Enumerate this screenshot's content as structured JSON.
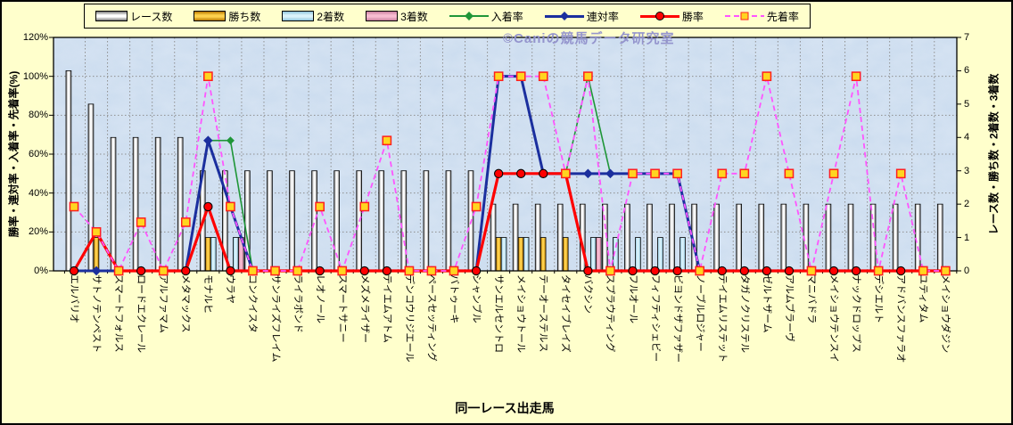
{
  "watermark": "©Caniの競馬データ研究室",
  "axes": {
    "left_title": "勝率・連対率・入着率・先着率(%)",
    "right_title": "レース数・勝ち数・2着数・3着数",
    "x_title": "同一レース出走馬",
    "left_ticks": [
      "0%",
      "20%",
      "40%",
      "60%",
      "80%",
      "100%",
      "120%"
    ],
    "right_ticks": [
      "0",
      "1",
      "2",
      "3",
      "4",
      "5",
      "6",
      "7"
    ]
  },
  "legend": {
    "items": [
      {
        "label": "レース数",
        "type": "bar",
        "key": "races"
      },
      {
        "label": "勝ち数",
        "type": "bar",
        "key": "wins"
      },
      {
        "label": "2着数",
        "type": "bar",
        "key": "seconds"
      },
      {
        "label": "3着数",
        "type": "bar",
        "key": "thirds"
      },
      {
        "label": "入着率",
        "type": "line",
        "key": "nyuchaku"
      },
      {
        "label": "連対率",
        "type": "line",
        "key": "rentai"
      },
      {
        "label": "勝率",
        "type": "line",
        "key": "shoritsu"
      },
      {
        "label": "先着率",
        "type": "line",
        "key": "senchaku"
      }
    ]
  },
  "chart_data": {
    "type": "combo-bar-line",
    "title": "同一レース出走馬",
    "categories": [
      "エルバリオ",
      "サトノテンペスト",
      "スマートフォルス",
      "ロードエクレール",
      "アルファマム",
      "メタマックス",
      "モナルヒ",
      "ウラヤ",
      "コンクイスタ",
      "サンライズフレイム",
      "ライラボンド",
      "レオノール",
      "スマートサニー",
      "メズメライザー",
      "テイエムアトム",
      "デンコウリジエール",
      "ペースセッティング",
      "バトゥーキ",
      "シャンブル",
      "サンエルセントロ",
      "メイショウトール",
      "テーオーステルス",
      "タイセイブレイズ",
      "バクシン",
      "スプラウティング",
      "フルオール",
      "フィフティシェビー",
      "ビヨンドザファザー",
      "ノーブルロジャー",
      "テイエムリステット",
      "タガノクリステル",
      "ゼルトザーム",
      "アルムブラーヴ",
      "マニバドラ",
      "メイショウテンスイ",
      "ナックドロップス",
      "デシエルト",
      "アドバンスファラオ",
      "ユティタム",
      "メイショウダジン"
    ],
    "bar_series": [
      {
        "key": "races",
        "name": "レース数",
        "axis": "right",
        "color_center": "#ffffff",
        "color_edge": "#7a7a7a",
        "values": [
          6,
          5,
          4,
          4,
          4,
          4,
          3,
          3,
          3,
          3,
          3,
          3,
          3,
          3,
          3,
          3,
          3,
          3,
          3,
          2,
          2,
          2,
          2,
          2,
          2,
          2,
          2,
          2,
          2,
          2,
          2,
          2,
          2,
          2,
          2,
          2,
          2,
          2,
          2,
          2
        ]
      },
      {
        "key": "wins",
        "name": "勝ち数",
        "axis": "right",
        "color_center": "#ffd24d",
        "color_edge": "#b87800",
        "values": [
          0,
          1,
          0,
          0,
          0,
          0,
          1,
          0,
          0,
          0,
          0,
          0,
          0,
          0,
          0,
          0,
          0,
          0,
          0,
          1,
          1,
          1,
          1,
          0,
          0,
          0,
          0,
          0,
          0,
          0,
          0,
          0,
          0,
          0,
          0,
          0,
          0,
          0,
          0,
          0
        ]
      },
      {
        "key": "seconds",
        "name": "2着数",
        "axis": "right",
        "color_center": "#d9f2fb",
        "color_edge": "#8fc4dc",
        "values": [
          0,
          0,
          0,
          0,
          0,
          0,
          1,
          1,
          0,
          0,
          0,
          0,
          0,
          0,
          0,
          0,
          0,
          0,
          0,
          1,
          1,
          0,
          0,
          1,
          1,
          1,
          1,
          1,
          0,
          0,
          0,
          0,
          0,
          0,
          0,
          0,
          0,
          0,
          0,
          0
        ]
      },
      {
        "key": "thirds",
        "name": "3着数",
        "axis": "right",
        "color_center": "#f8bcd1",
        "color_edge": "#c97f9e",
        "values": [
          0,
          0,
          0,
          0,
          0,
          0,
          0,
          1,
          0,
          0,
          0,
          0,
          0,
          0,
          0,
          0,
          0,
          0,
          0,
          0,
          0,
          0,
          0,
          1,
          0,
          0,
          0,
          0,
          0,
          0,
          0,
          0,
          0,
          0,
          0,
          0,
          0,
          0,
          0,
          0
        ]
      }
    ],
    "line_series": [
      {
        "key": "nyuchaku",
        "name": "入着率",
        "axis": "left",
        "color": "#1f9638",
        "marker": "diamond",
        "width": 1.6,
        "dashed": false,
        "values": [
          0,
          20,
          0,
          0,
          0,
          0,
          67,
          67,
          0,
          0,
          0,
          0,
          0,
          0,
          0,
          0,
          0,
          0,
          0,
          100,
          100,
          50,
          50,
          100,
          50,
          50,
          50,
          50,
          0,
          0,
          0,
          0,
          0,
          0,
          0,
          0,
          0,
          0,
          0,
          0
        ]
      },
      {
        "key": "rentai",
        "name": "連対率",
        "axis": "left",
        "color": "#1b2f9e",
        "marker": "diamond",
        "width": 3,
        "dashed": false,
        "values": [
          0,
          0,
          0,
          0,
          0,
          0,
          67,
          33,
          0,
          0,
          0,
          0,
          0,
          0,
          0,
          0,
          0,
          0,
          0,
          100,
          100,
          50,
          50,
          50,
          50,
          50,
          50,
          50,
          0,
          0,
          0,
          0,
          0,
          0,
          0,
          0,
          0,
          0,
          0,
          0
        ]
      },
      {
        "key": "shoritsu",
        "name": "勝率",
        "axis": "left",
        "color": "#ff0000",
        "marker": "circle",
        "width": 3.2,
        "dashed": false,
        "values": [
          0,
          20,
          0,
          0,
          0,
          0,
          33,
          0,
          0,
          0,
          0,
          0,
          0,
          0,
          0,
          0,
          0,
          0,
          0,
          50,
          50,
          50,
          50,
          0,
          0,
          0,
          0,
          0,
          0,
          0,
          0,
          0,
          0,
          0,
          0,
          0,
          0,
          0,
          0,
          0
        ]
      },
      {
        "key": "senchaku",
        "name": "先着率",
        "axis": "left",
        "color": "#ff55ff",
        "marker": "square",
        "width": 1.8,
        "dashed": true,
        "values": [
          33,
          20,
          0,
          25,
          0,
          25,
          100,
          33,
          0,
          0,
          0,
          33,
          0,
          33,
          67,
          0,
          0,
          0,
          33,
          100,
          100,
          100,
          50,
          100,
          0,
          50,
          50,
          50,
          0,
          50,
          50,
          100,
          50,
          0,
          50,
          100,
          0,
          50,
          0,
          0
        ]
      }
    ],
    "left_axis": {
      "min": 0,
      "max": 120,
      "step": 20,
      "unit": "%"
    },
    "right_axis": {
      "min": 0,
      "max": 7,
      "step": 1
    },
    "grid": true,
    "legend_position": "top",
    "plot_bg": "#cbdcef",
    "page_bg": "#ffffcc"
  }
}
